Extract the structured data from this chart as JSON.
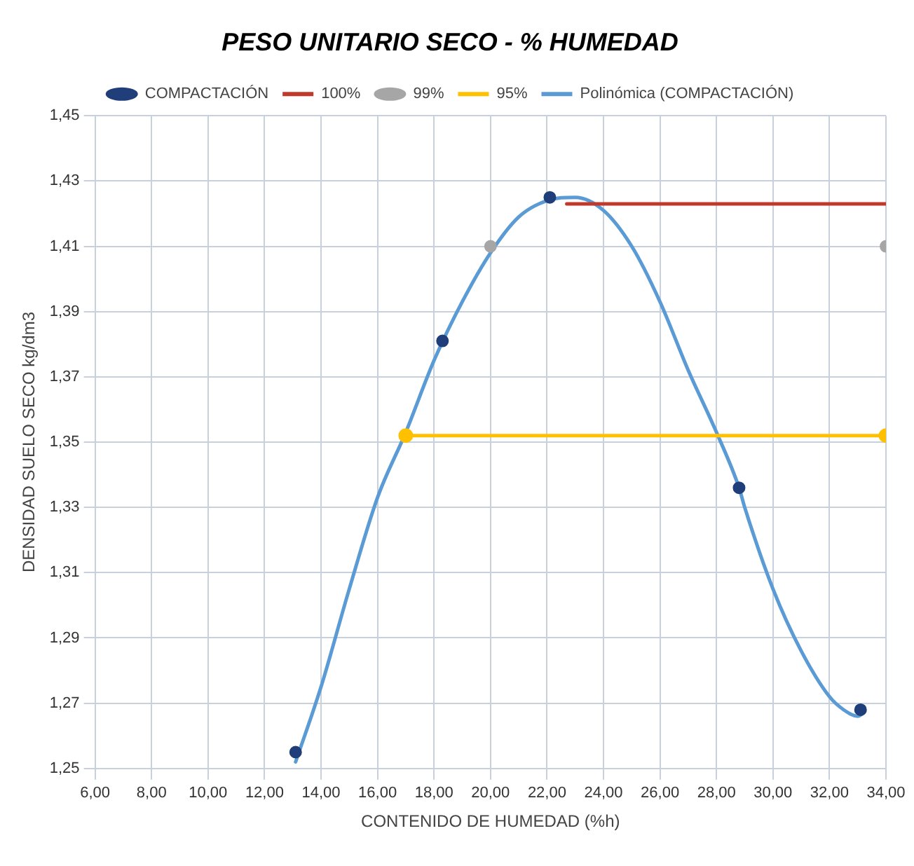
{
  "chart_data": {
    "type": "scatter",
    "title": "PESO UNITARIO SECO - % HUMEDAD",
    "xlabel": "CONTENIDO DE HUMEDAD (%h)",
    "ylabel": "DENSIDAD SUELO SECO kg/dm3",
    "xlim": [
      6,
      34
    ],
    "ylim": [
      1.25,
      1.45
    ],
    "xticks": [
      {
        "value": 6,
        "label": "6,00"
      },
      {
        "value": 8,
        "label": "8,00"
      },
      {
        "value": 10,
        "label": "10,00"
      },
      {
        "value": 12,
        "label": "12,00"
      },
      {
        "value": 14,
        "label": "14,00"
      },
      {
        "value": 16,
        "label": "16,00"
      },
      {
        "value": 18,
        "label": "18,00"
      },
      {
        "value": 20,
        "label": "20,00"
      },
      {
        "value": 22,
        "label": "22,00"
      },
      {
        "value": 24,
        "label": "24,00"
      },
      {
        "value": 26,
        "label": "26,00"
      },
      {
        "value": 28,
        "label": "28,00"
      },
      {
        "value": 30,
        "label": "30,00"
      },
      {
        "value": 32,
        "label": "32,00"
      },
      {
        "value": 34,
        "label": "34,00"
      }
    ],
    "yticks": [
      {
        "value": 1.25,
        "label": "1,25"
      },
      {
        "value": 1.27,
        "label": "1,27"
      },
      {
        "value": 1.29,
        "label": "1,29"
      },
      {
        "value": 1.31,
        "label": "1,31"
      },
      {
        "value": 1.33,
        "label": "1,33"
      },
      {
        "value": 1.35,
        "label": "1,35"
      },
      {
        "value": 1.37,
        "label": "1,37"
      },
      {
        "value": 1.39,
        "label": "1,39"
      },
      {
        "value": 1.41,
        "label": "1,41"
      },
      {
        "value": 1.43,
        "label": "1,43"
      },
      {
        "value": 1.45,
        "label": "1,45"
      }
    ],
    "grid": true,
    "legend": "top",
    "series": [
      {
        "name": "COMPACTACIÓN",
        "type": "scatter",
        "marker": "circle",
        "color": "#1f3e7a",
        "x": [
          13.1,
          18.3,
          22.1,
          28.8,
          33.1
        ],
        "values": [
          1.255,
          1.381,
          1.425,
          1.336,
          1.268
        ]
      },
      {
        "name": "100%",
        "type": "line",
        "marker": "none",
        "color": "#c0392b",
        "x": [
          22.7,
          34
        ],
        "values": [
          1.423,
          1.423
        ]
      },
      {
        "name": "99%",
        "type": "scatter",
        "marker": "circle",
        "color": "#a6a6a6",
        "x": [
          20,
          34
        ],
        "values": [
          1.41,
          1.41
        ]
      },
      {
        "name": "95%",
        "type": "line",
        "marker": "circle",
        "color": "#ffc000",
        "x": [
          17,
          34
        ],
        "values": [
          1.352,
          1.352
        ]
      },
      {
        "name": "Polinómica (COMPACTACIÓN)",
        "type": "line",
        "marker": "none",
        "color": "#5b9bd5",
        "x": [
          13.1,
          14,
          15,
          16,
          17,
          18,
          19,
          20,
          21,
          22,
          23,
          24,
          25,
          26,
          27,
          28,
          28.8,
          29,
          30,
          31,
          32,
          32.5,
          33,
          33.2
        ],
        "values": [
          1.252,
          1.275,
          1.305,
          1.333,
          1.353,
          1.375,
          1.393,
          1.408,
          1.419,
          1.424,
          1.425,
          1.421,
          1.41,
          1.393,
          1.372,
          1.353,
          1.336,
          1.33,
          1.305,
          1.286,
          1.272,
          1.268,
          1.266,
          1.267
        ]
      }
    ]
  }
}
